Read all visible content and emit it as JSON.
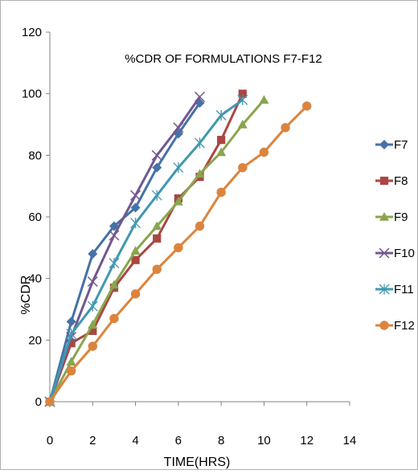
{
  "chart_data": {
    "type": "line",
    "title": "%CDR OF FORMULATIONS F7-F12",
    "xlabel": "TIME(HRS)",
    "ylabel": "%CDR",
    "xlim": [
      0,
      14
    ],
    "ylim": [
      0,
      120
    ],
    "xticks": [
      "0",
      "2",
      "4",
      "6",
      "8",
      "10",
      "12",
      "14"
    ],
    "yticks": [
      "0",
      "20",
      "40",
      "60",
      "80",
      "100",
      "120"
    ],
    "grid": false,
    "legend_position": "right",
    "series": [
      {
        "name": "F7",
        "color": "#4572A7",
        "marker": "diamond",
        "x": [
          0,
          1,
          2,
          3,
          4,
          5,
          6,
          7
        ],
        "y": [
          0,
          26,
          48,
          57,
          63,
          76,
          87,
          97
        ]
      },
      {
        "name": "F8",
        "color": "#AA4643",
        "marker": "square",
        "x": [
          0,
          1,
          2,
          3,
          4,
          5,
          6,
          7,
          8,
          9
        ],
        "y": [
          0,
          19,
          23,
          37,
          46,
          53,
          66,
          73,
          85,
          100
        ]
      },
      {
        "name": "F9",
        "color": "#89A54E",
        "marker": "triangle",
        "x": [
          0,
          1,
          2,
          3,
          4,
          5,
          6,
          7,
          8,
          9,
          10
        ],
        "y": [
          0,
          13,
          25,
          38,
          49,
          57,
          65,
          74,
          81,
          90,
          98
        ]
      },
      {
        "name": "F10",
        "color": "#71588F",
        "marker": "x",
        "x": [
          0,
          1,
          2,
          3,
          4,
          5,
          6,
          7
        ],
        "y": [
          0,
          21,
          39,
          54,
          67,
          80,
          89,
          99
        ]
      },
      {
        "name": "F11",
        "color": "#4198AF",
        "marker": "asterisk",
        "x": [
          0,
          1,
          2,
          3,
          4,
          5,
          6,
          7,
          8,
          9
        ],
        "y": [
          0,
          22,
          31,
          45,
          58,
          67,
          76,
          84,
          93,
          98
        ]
      },
      {
        "name": "F12",
        "color": "#DB843D",
        "marker": "circle",
        "x": [
          0,
          1,
          2,
          3,
          4,
          5,
          6,
          7,
          8,
          9,
          10,
          11,
          12
        ],
        "y": [
          0,
          10,
          18,
          27,
          35,
          43,
          50,
          57,
          68,
          76,
          81,
          89,
          96
        ]
      }
    ]
  }
}
